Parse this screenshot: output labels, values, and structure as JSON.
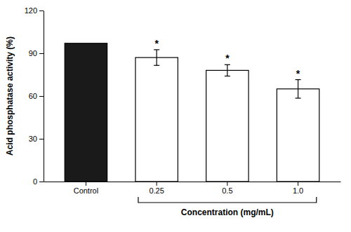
{
  "chart_data": {
    "type": "bar",
    "categories": [
      "Control",
      "0.25",
      "0.5",
      "1.0"
    ],
    "values": [
      97.0,
      87.0,
      78.0,
      65.0
    ],
    "errors": [
      0.0,
      5.5,
      4.0,
      6.5
    ],
    "colors": [
      "#1a1a1a",
      "#ffffff",
      "#ffffff",
      "#ffffff"
    ],
    "ylabel": "Acid phosphatase activity (%)",
    "ylim": [
      0,
      120
    ],
    "yticks": [
      0,
      30,
      60,
      90,
      120
    ],
    "grid": false,
    "annotations": [
      {
        "text": "*",
        "x": "0.25"
      },
      {
        "text": "*",
        "x": "0.5"
      },
      {
        "text": "*",
        "x": "1.0"
      }
    ],
    "bracket": {
      "label": "Concentration (mg/mL)",
      "categories": [
        "0.25",
        "1.0"
      ]
    }
  }
}
